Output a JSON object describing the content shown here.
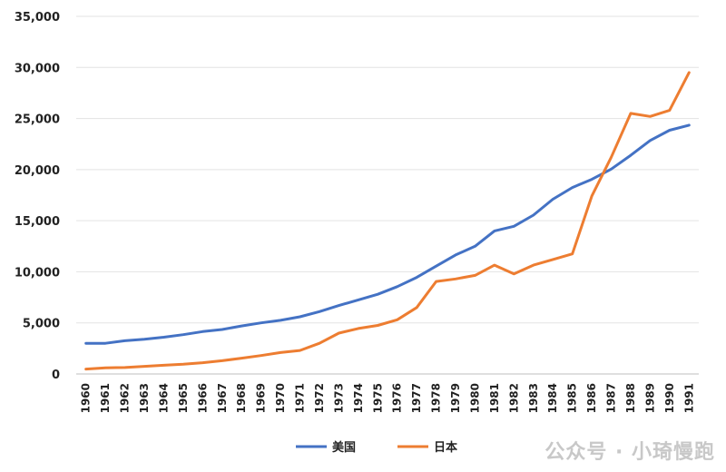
{
  "chart_data": {
    "type": "line",
    "title": "",
    "xlabel": "",
    "ylabel": "",
    "x": [
      "1960",
      "1961",
      "1962",
      "1963",
      "1964",
      "1965",
      "1966",
      "1967",
      "1968",
      "1969",
      "1970",
      "1971",
      "1972",
      "1973",
      "1974",
      "1975",
      "1976",
      "1977",
      "1978",
      "1979",
      "1980",
      "1981",
      "1982",
      "1983",
      "1984",
      "1985",
      "1986",
      "1987",
      "1988",
      "1989",
      "1990",
      "1991"
    ],
    "ylim": [
      0,
      35000
    ],
    "yticks": [
      "0",
      "5,000",
      "10,000",
      "15,000",
      "20,000",
      "25,000",
      "30,000",
      "35,000"
    ],
    "ytick_values": [
      0,
      5000,
      10000,
      15000,
      20000,
      25000,
      30000,
      35000
    ],
    "grid": true,
    "legend_position": "bottom-center",
    "series": [
      {
        "name": "美国",
        "color": "#4472C4",
        "values": [
          3000,
          3000,
          3250,
          3400,
          3600,
          3850,
          4150,
          4350,
          4700,
          5000,
          5250,
          5600,
          6100,
          6700,
          7250,
          7800,
          8550,
          9450,
          10550,
          11650,
          12500,
          14000,
          14450,
          15550,
          17100,
          18250,
          19050,
          20050,
          21400,
          22850,
          23850,
          24350
        ]
      },
      {
        "name": "日本",
        "color": "#ED7D31",
        "values": [
          480,
          600,
          630,
          750,
          850,
          950,
          1100,
          1300,
          1550,
          1800,
          2100,
          2300,
          3000,
          4000,
          4450,
          4750,
          5300,
          6500,
          9050,
          9300,
          9650,
          10650,
          9800,
          10650,
          11200,
          11750,
          17400,
          21200,
          25500,
          25200,
          25800,
          29500
        ]
      }
    ]
  },
  "watermark": "公众号 · 小琦慢跑"
}
